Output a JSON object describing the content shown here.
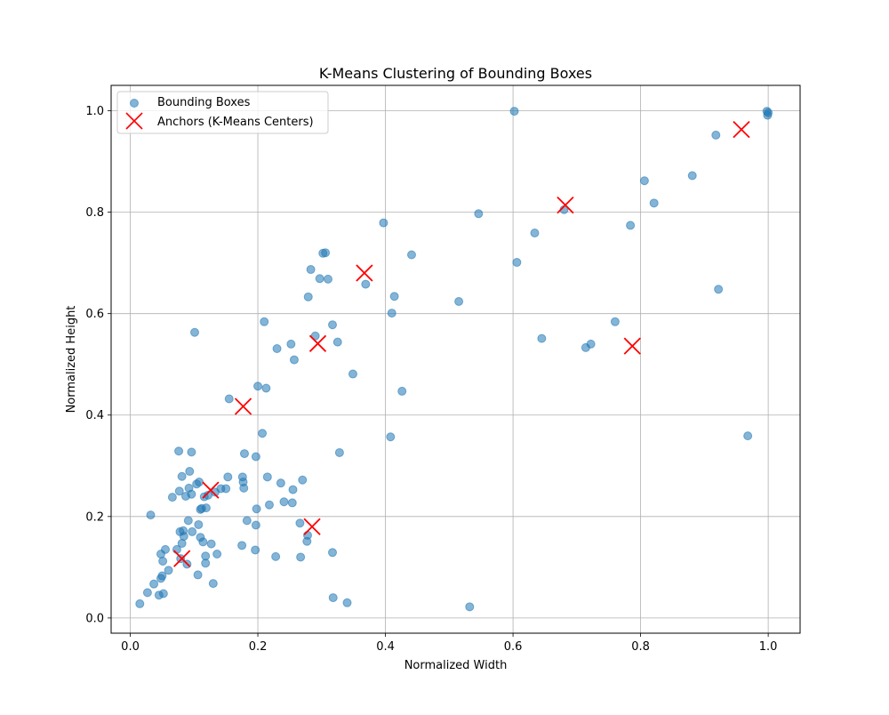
{
  "chart_data": {
    "type": "scatter",
    "title": "K-Means Clustering of Bounding Boxes",
    "xlabel": "Normalized Width",
    "ylabel": "Normalized Height",
    "xlim": [
      -0.03,
      1.05
    ],
    "ylim": [
      -0.03,
      1.05
    ],
    "xticks": [
      0.0,
      0.2,
      0.4,
      0.6,
      0.8,
      1.0
    ],
    "yticks": [
      0.0,
      0.2,
      0.4,
      0.6,
      0.8,
      1.0
    ],
    "xtick_labels": [
      "0.0",
      "0.2",
      "0.4",
      "0.6",
      "0.8",
      "1.0"
    ],
    "ytick_labels": [
      "0.0",
      "0.2",
      "0.4",
      "0.6",
      "0.8",
      "1.0"
    ],
    "grid": true,
    "legend_position": "top-left",
    "series": [
      {
        "name": "Bounding Boxes",
        "marker": "circle",
        "color": "#1f77b4",
        "alpha": 0.55,
        "points": [
          [
            0.015,
            0.028
          ],
          [
            0.027,
            0.05
          ],
          [
            0.032,
            0.203
          ],
          [
            0.037,
            0.067
          ],
          [
            0.045,
            0.045
          ],
          [
            0.048,
            0.078
          ],
          [
            0.048,
            0.126
          ],
          [
            0.05,
            0.083
          ],
          [
            0.051,
            0.112
          ],
          [
            0.052,
            0.048
          ],
          [
            0.055,
            0.135
          ],
          [
            0.06,
            0.094
          ],
          [
            0.066,
            0.238
          ],
          [
            0.073,
            0.135
          ],
          [
            0.076,
            0.329
          ],
          [
            0.077,
            0.25
          ],
          [
            0.078,
            0.17
          ],
          [
            0.079,
            0.117
          ],
          [
            0.081,
            0.147
          ],
          [
            0.081,
            0.279
          ],
          [
            0.083,
            0.172
          ],
          [
            0.084,
            0.161
          ],
          [
            0.087,
            0.24
          ],
          [
            0.089,
            0.106
          ],
          [
            0.091,
            0.192
          ],
          [
            0.092,
            0.256
          ],
          [
            0.093,
            0.289
          ],
          [
            0.096,
            0.327
          ],
          [
            0.096,
            0.244
          ],
          [
            0.097,
            0.17
          ],
          [
            0.101,
            0.563
          ],
          [
            0.104,
            0.264
          ],
          [
            0.106,
            0.085
          ],
          [
            0.107,
            0.184
          ],
          [
            0.108,
            0.268
          ],
          [
            0.11,
            0.214
          ],
          [
            0.11,
            0.159
          ],
          [
            0.112,
            0.216
          ],
          [
            0.114,
            0.15
          ],
          [
            0.116,
            0.239
          ],
          [
            0.118,
            0.122
          ],
          [
            0.118,
            0.108
          ],
          [
            0.119,
            0.217
          ],
          [
            0.122,
            0.242
          ],
          [
            0.127,
            0.146
          ],
          [
            0.13,
            0.068
          ],
          [
            0.133,
            0.248
          ],
          [
            0.136,
            0.126
          ],
          [
            0.142,
            0.255
          ],
          [
            0.15,
            0.255
          ],
          [
            0.153,
            0.278
          ],
          [
            0.155,
            0.432
          ],
          [
            0.175,
            0.143
          ],
          [
            0.176,
            0.278
          ],
          [
            0.177,
            0.268
          ],
          [
            0.178,
            0.256
          ],
          [
            0.179,
            0.324
          ],
          [
            0.183,
            0.192
          ],
          [
            0.196,
            0.134
          ],
          [
            0.197,
            0.318
          ],
          [
            0.197,
            0.183
          ],
          [
            0.198,
            0.215
          ],
          [
            0.2,
            0.457
          ],
          [
            0.207,
            0.364
          ],
          [
            0.21,
            0.584
          ],
          [
            0.213,
            0.453
          ],
          [
            0.215,
            0.278
          ],
          [
            0.218,
            0.223
          ],
          [
            0.228,
            0.121
          ],
          [
            0.23,
            0.531
          ],
          [
            0.236,
            0.266
          ],
          [
            0.241,
            0.229
          ],
          [
            0.252,
            0.54
          ],
          [
            0.254,
            0.227
          ],
          [
            0.255,
            0.253
          ],
          [
            0.257,
            0.509
          ],
          [
            0.266,
            0.187
          ],
          [
            0.267,
            0.12
          ],
          [
            0.27,
            0.272
          ],
          [
            0.277,
            0.151
          ],
          [
            0.278,
            0.163
          ],
          [
            0.279,
            0.633
          ],
          [
            0.283,
            0.687
          ],
          [
            0.29,
            0.556
          ],
          [
            0.297,
            0.669
          ],
          [
            0.302,
            0.719
          ],
          [
            0.306,
            0.72
          ],
          [
            0.31,
            0.668
          ],
          [
            0.317,
            0.129
          ],
          [
            0.317,
            0.578
          ],
          [
            0.318,
            0.04
          ],
          [
            0.325,
            0.544
          ],
          [
            0.328,
            0.326
          ],
          [
            0.34,
            0.03
          ],
          [
            0.349,
            0.481
          ],
          [
            0.397,
            0.779
          ],
          [
            0.369,
            0.658
          ],
          [
            0.408,
            0.357
          ],
          [
            0.41,
            0.601
          ],
          [
            0.414,
            0.634
          ],
          [
            0.426,
            0.447
          ],
          [
            0.441,
            0.716
          ],
          [
            0.515,
            0.624
          ],
          [
            0.532,
            0.022
          ],
          [
            0.546,
            0.797
          ],
          [
            0.602,
            0.999
          ],
          [
            0.606,
            0.701
          ],
          [
            0.634,
            0.759
          ],
          [
            0.645,
            0.551
          ],
          [
            0.68,
            0.805
          ],
          [
            0.714,
            0.533
          ],
          [
            0.722,
            0.54
          ],
          [
            0.76,
            0.584
          ],
          [
            0.784,
            0.774
          ],
          [
            0.806,
            0.862
          ],
          [
            0.821,
            0.818
          ],
          [
            0.881,
            0.872
          ],
          [
            0.918,
            0.952
          ],
          [
            0.922,
            0.648
          ],
          [
            0.968,
            0.359
          ],
          [
            0.998,
            0.999
          ],
          [
            0.999,
            0.991
          ],
          [
            1.0,
            0.996
          ]
        ]
      },
      {
        "name": "Anchors (K-Means Centers)",
        "marker": "x",
        "color": "#ff0000",
        "points": [
          [
            0.081,
            0.117
          ],
          [
            0.126,
            0.252
          ],
          [
            0.177,
            0.417
          ],
          [
            0.285,
            0.18
          ],
          [
            0.294,
            0.541
          ],
          [
            0.367,
            0.68
          ],
          [
            0.682,
            0.814
          ],
          [
            0.787,
            0.536
          ],
          [
            0.958,
            0.963
          ]
        ]
      }
    ]
  }
}
